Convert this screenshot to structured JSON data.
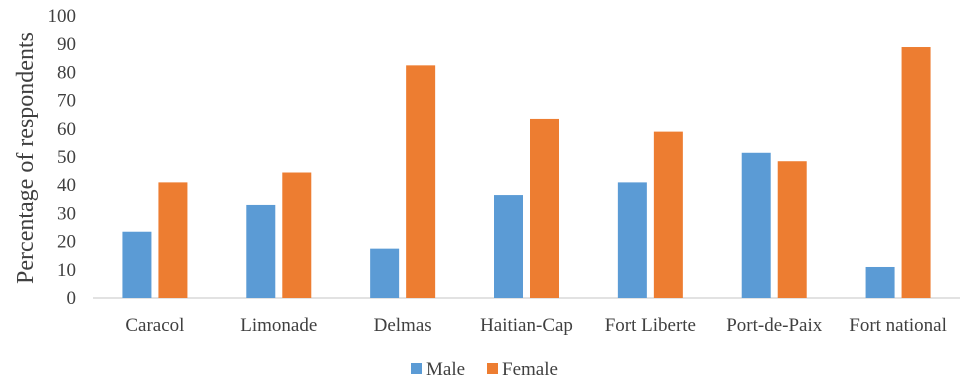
{
  "chart_data": {
    "type": "bar",
    "title": "",
    "xlabel": "",
    "ylabel": "Percentage of respondents",
    "ylim": [
      0,
      100
    ],
    "yticks": [
      0,
      10,
      20,
      30,
      40,
      50,
      60,
      70,
      80,
      90,
      100
    ],
    "grid": false,
    "legend_position": "bottom",
    "categories": [
      "Caracol",
      "Limonade",
      "Delmas",
      "Haitian-Cap",
      "Fort Liberte",
      "Port-de-Paix",
      "Fort national"
    ],
    "series": [
      {
        "name": "Male",
        "color": "#5b9bd5",
        "values": [
          23.5,
          33,
          17.5,
          36.5,
          41,
          51.5,
          11
        ]
      },
      {
        "name": "Female",
        "color": "#ed7d31",
        "values": [
          41,
          44.5,
          82.5,
          63.5,
          59,
          48.5,
          89
        ]
      }
    ]
  }
}
